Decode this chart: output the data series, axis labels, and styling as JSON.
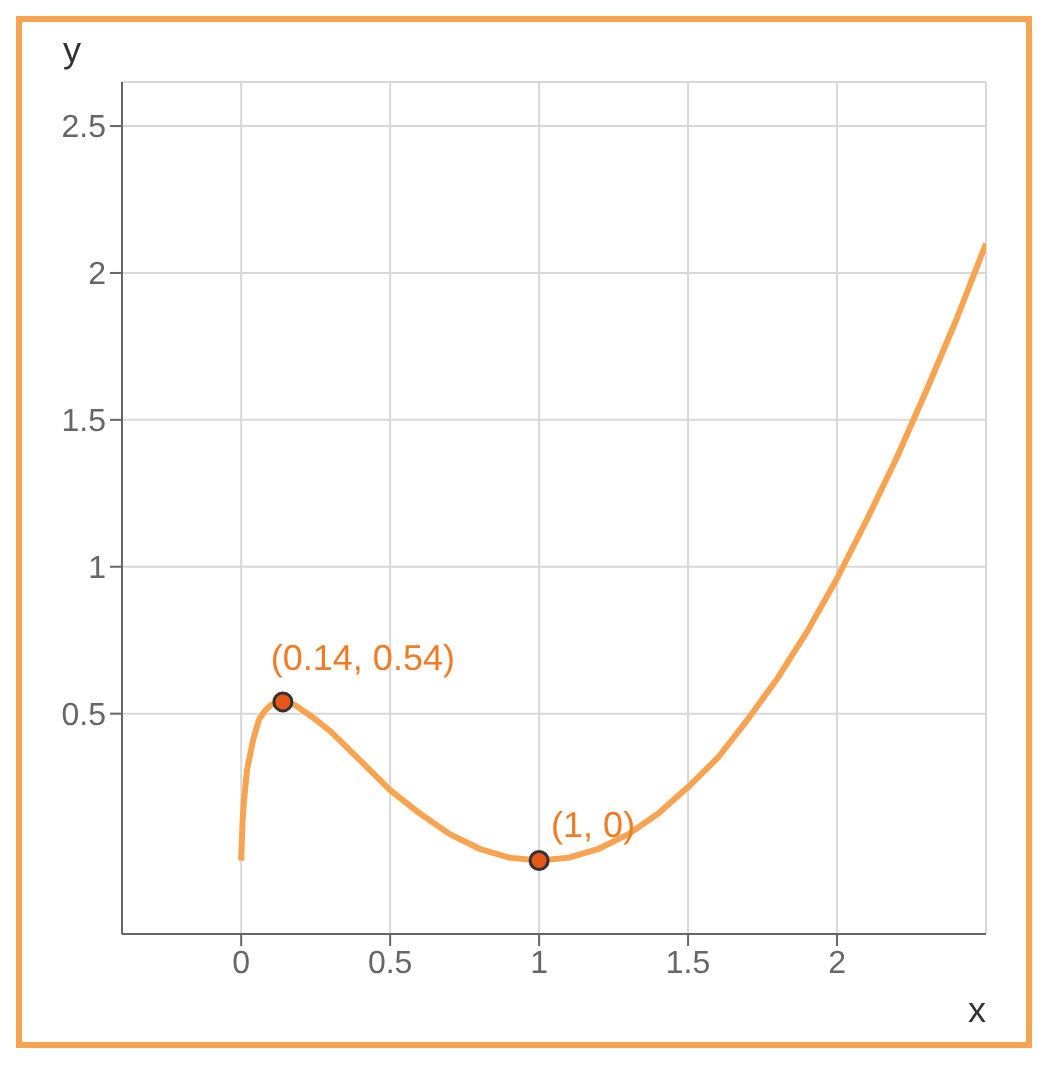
{
  "chart_data": {
    "type": "line",
    "xlabel": "x",
    "ylabel": "y",
    "xlim": [
      -0.4,
      2.5
    ],
    "ylim": [
      -0.25,
      2.65
    ],
    "xticks": [
      0,
      0.5,
      1,
      1.5,
      2
    ],
    "yticks": [
      0.5,
      1,
      1.5,
      2,
      2.5
    ],
    "grid": true,
    "legend": false,
    "marker": "none",
    "line_style": "solid",
    "series": [
      {
        "color": "#f7a350",
        "x": [
          0,
          0.005,
          0.01,
          0.02,
          0.04,
          0.06,
          0.08,
          0.1,
          0.14,
          0.18,
          0.25,
          0.3,
          0.4,
          0.5,
          0.6,
          0.7,
          0.8,
          0.9,
          1,
          1.1,
          1.2,
          1.3,
          1.4,
          1.5,
          1.6,
          1.7,
          1.8,
          1.9,
          2,
          2.1,
          2.2,
          2.3,
          2.4,
          2.5
        ],
        "values": [
          0,
          0.14,
          0.21,
          0.31,
          0.41,
          0.48,
          0.51,
          0.53,
          0.54,
          0.53,
          0.48,
          0.44,
          0.34,
          0.24,
          0.16,
          0.09,
          0.04,
          0.01,
          0,
          0.01,
          0.04,
          0.09,
          0.16,
          0.25,
          0.35,
          0.48,
          0.62,
          0.78,
          0.96,
          1.16,
          1.37,
          1.6,
          1.84,
          2.1
        ]
      },
      {
        "type": "scatter",
        "color": "#e8571a",
        "marker": "circle",
        "x": [
          0.14,
          1
        ],
        "values": [
          0.54,
          0
        ]
      }
    ],
    "annotations": [
      {
        "text": "(0.14, 0.54)",
        "x": 0.14,
        "y": 0.54
      },
      {
        "text": "(1, 0)",
        "x": 1,
        "y": 0
      }
    ]
  }
}
